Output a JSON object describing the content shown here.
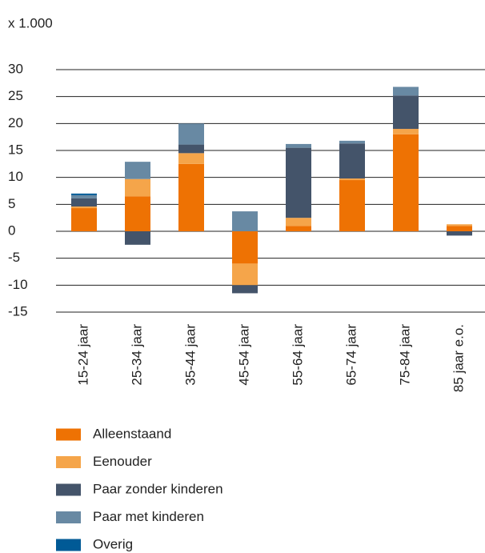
{
  "chart_data": {
    "type": "stacked-bar",
    "subtitle": "x 1.000",
    "categories": [
      "15-24 jaar",
      "25-34 jaar",
      "35-44 jaar",
      "45-54 jaar",
      "55-64 jaar",
      "65-74 jaar",
      "75-84 jaar",
      "85 jaar e.o."
    ],
    "series": [
      {
        "name": "Alleenstaand",
        "color": "#ee7203",
        "values": [
          4.3,
          6.5,
          12.5,
          -6,
          1,
          9.5,
          18,
          1
        ]
      },
      {
        "name": "Eenouder",
        "color": "#f5a54a",
        "values": [
          0.3,
          3.2,
          2,
          -4,
          1.5,
          0.3,
          1,
          0.3
        ]
      },
      {
        "name": "Paar zonder kinderen",
        "color": "#44546a",
        "values": [
          1.5,
          -2.5,
          1.6,
          -1.5,
          13,
          6.5,
          6.2,
          -0.8
        ]
      },
      {
        "name": "Paar met kinderen",
        "color": "#6889a3",
        "values": [
          0.6,
          3.2,
          3.9,
          3.7,
          0.7,
          0.5,
          1.6,
          0
        ]
      },
      {
        "name": "Overig",
        "color": "#005a96",
        "values": [
          0.3,
          0,
          0,
          0,
          0,
          0,
          0,
          0
        ]
      }
    ],
    "ylim": [
      -15,
      30
    ],
    "yticks": [
      30,
      25,
      20,
      15,
      10,
      5,
      0,
      -5,
      -10,
      -15
    ],
    "grid": true
  }
}
